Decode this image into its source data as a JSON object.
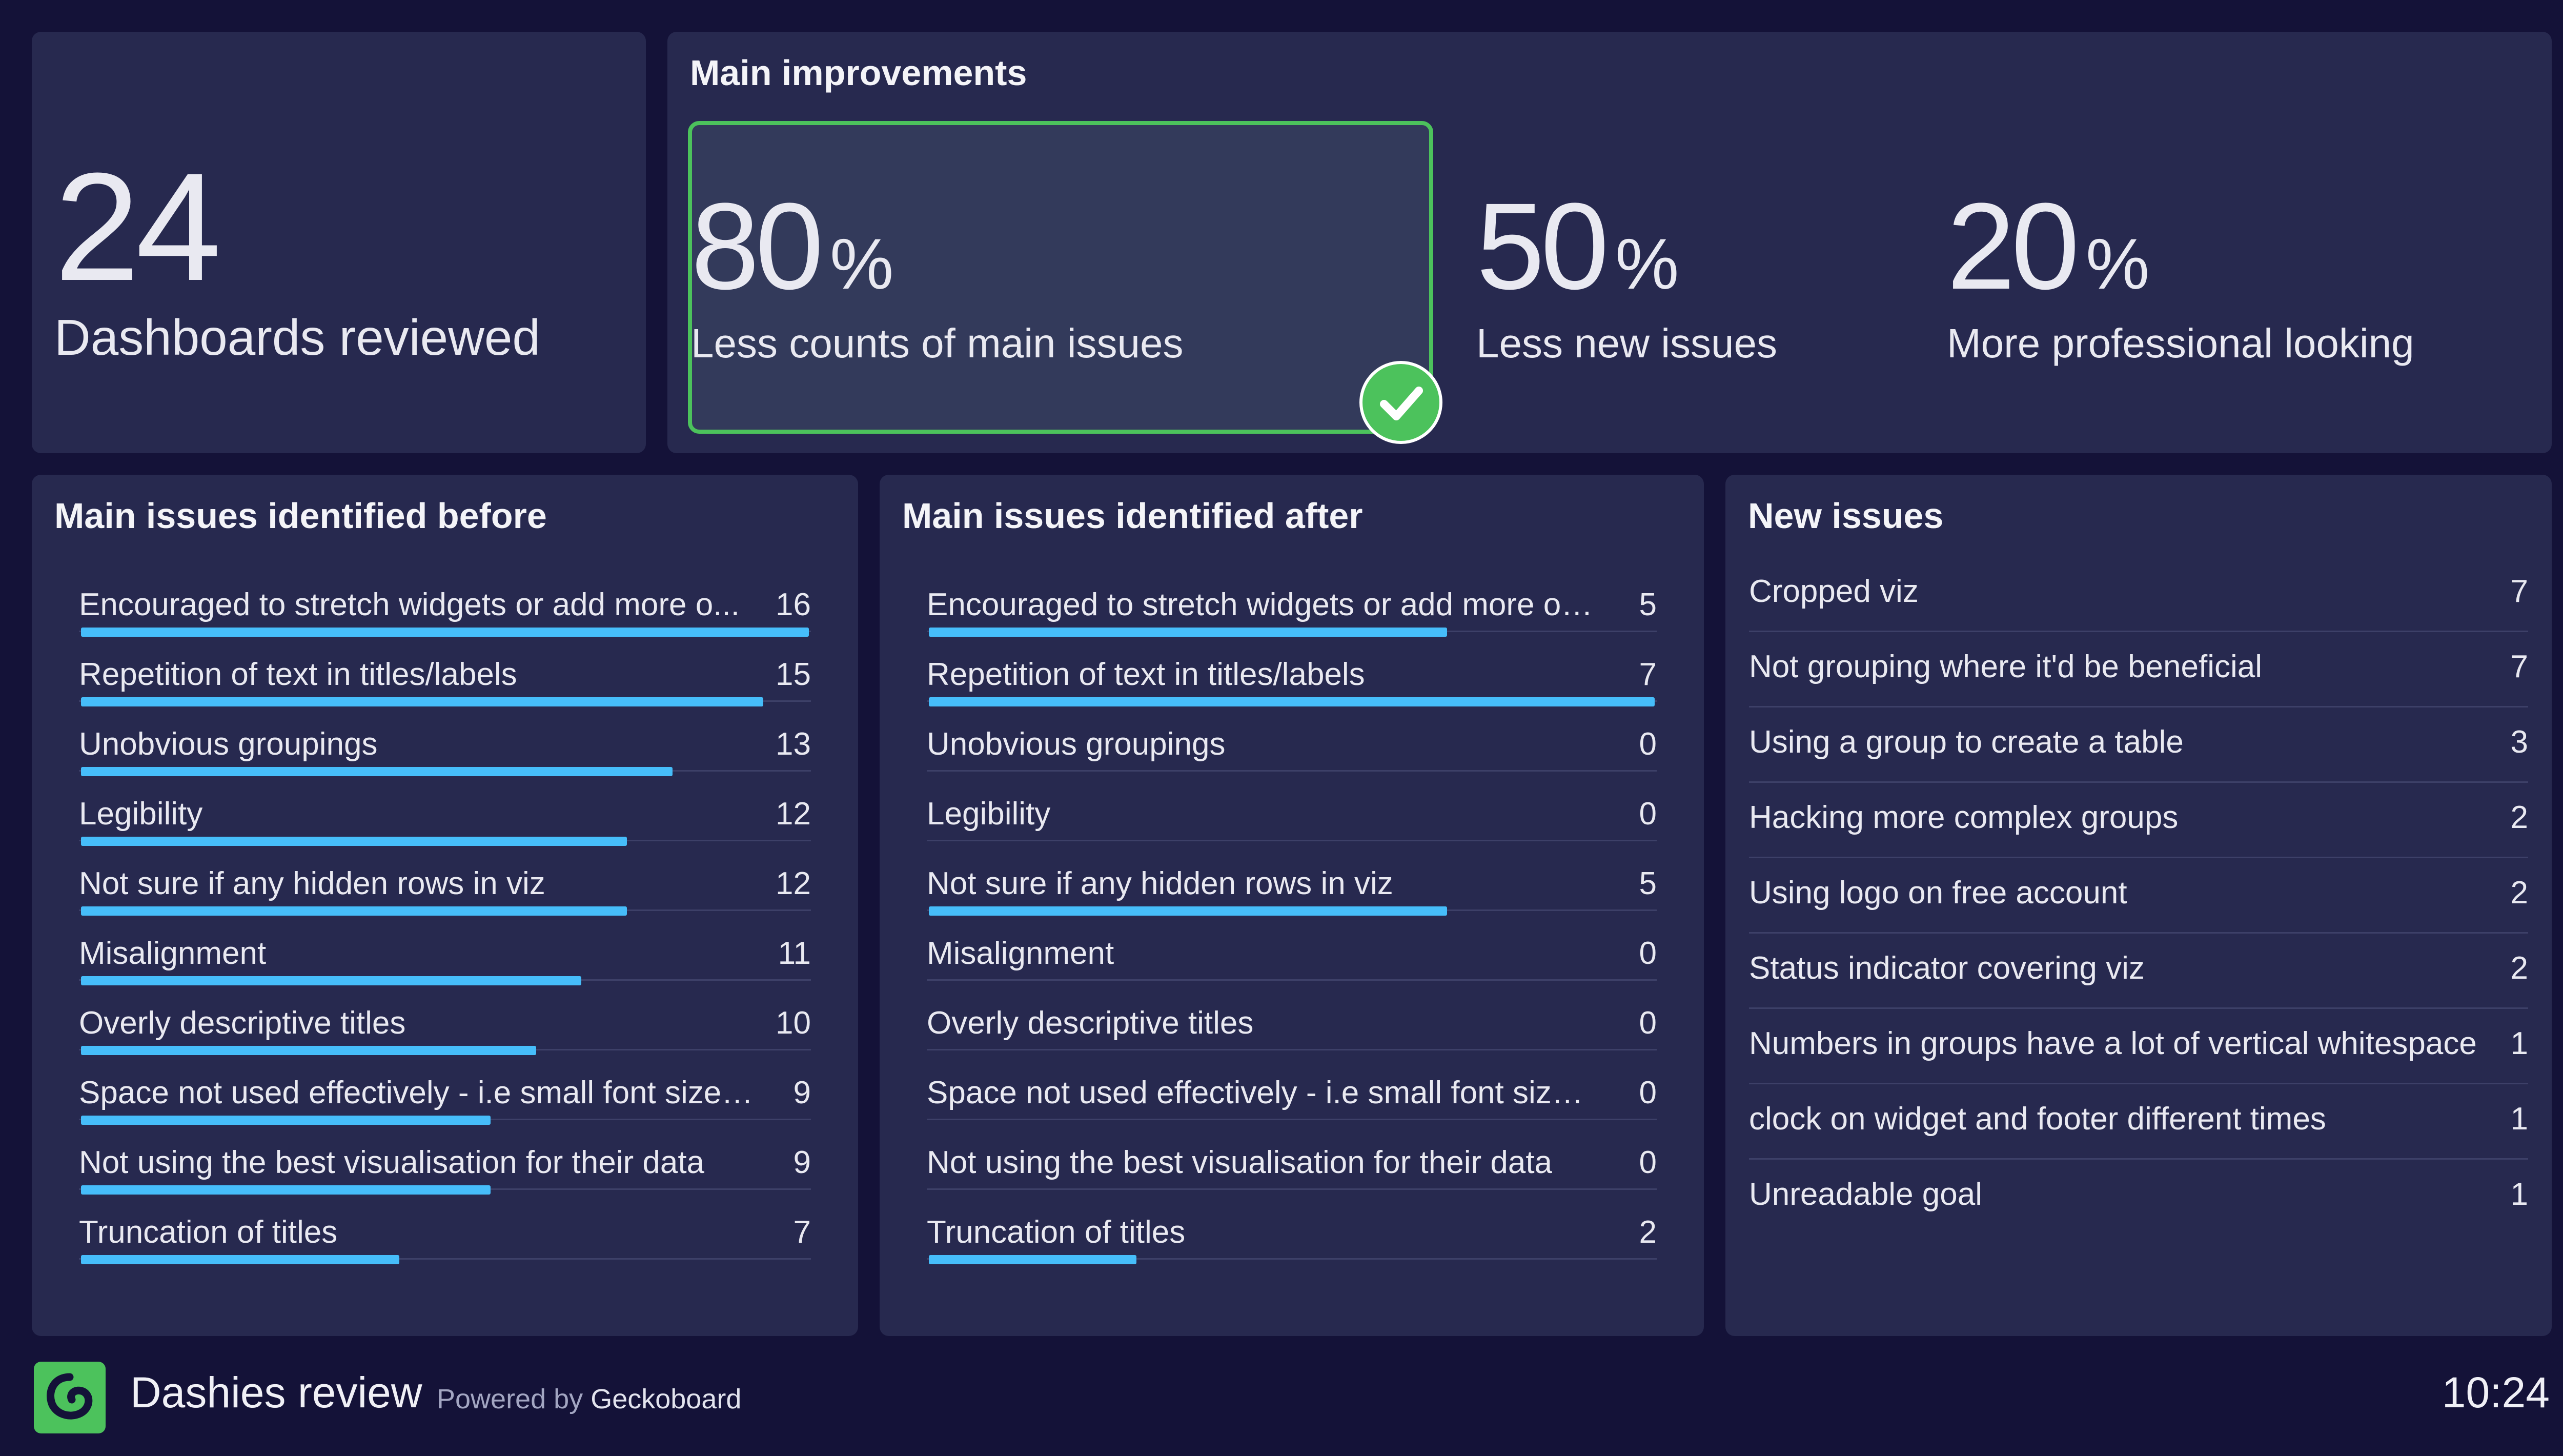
{
  "kpi": {
    "value": "24",
    "label": "Dashboards reviewed"
  },
  "improvements": {
    "title": "Main improvements",
    "items": [
      {
        "value": "80",
        "unit": "%",
        "label": "Less counts of main issues",
        "highlighted": true
      },
      {
        "value": "50",
        "unit": "%",
        "label": "Less new issues"
      },
      {
        "value": "20",
        "unit": "%",
        "label": "More professional looking"
      }
    ]
  },
  "before": {
    "title": "Main issues identified before",
    "max": 16,
    "rows": [
      {
        "label": "Encouraged to stretch widgets or add more o...",
        "count": 16
      },
      {
        "label": "Repetition of text in titles/labels",
        "count": 15
      },
      {
        "label": "Unobvious groupings",
        "count": 13
      },
      {
        "label": "Legibility",
        "count": 12
      },
      {
        "label": "Not sure if any hidden rows in viz",
        "count": 12
      },
      {
        "label": "Misalignment",
        "count": 11
      },
      {
        "label": "Overly descriptive titles",
        "count": 10
      },
      {
        "label": "Space not used effectively - i.e small font size i...",
        "count": 9
      },
      {
        "label": "Not using the best visualisation for their data",
        "count": 9
      },
      {
        "label": "Truncation of titles",
        "count": 7
      }
    ]
  },
  "after": {
    "title": "Main issues identified after",
    "max": 7,
    "rows": [
      {
        "label": "Encouraged to stretch widgets or add more or ...",
        "count": 5
      },
      {
        "label": "Repetition of text in titles/labels",
        "count": 7
      },
      {
        "label": "Unobvious groupings",
        "count": 0
      },
      {
        "label": "Legibility",
        "count": 0
      },
      {
        "label": "Not sure if any hidden rows in viz",
        "count": 5
      },
      {
        "label": "Misalignment",
        "count": 0
      },
      {
        "label": "Overly descriptive titles",
        "count": 0
      },
      {
        "label": "Space not used effectively - i.e small font size i...",
        "count": 0
      },
      {
        "label": "Not using the best visualisation for their data",
        "count": 0
      },
      {
        "label": "Truncation of titles",
        "count": 2
      }
    ]
  },
  "newIssues": {
    "title": "New issues",
    "rows": [
      {
        "label": "Cropped viz",
        "count": 7
      },
      {
        "label": "Not grouping where it'd be beneficial",
        "count": 7
      },
      {
        "label": "Using a group to create a table",
        "count": 3
      },
      {
        "label": "Hacking more complex groups",
        "count": 2
      },
      {
        "label": "Using logo on free account",
        "count": 2
      },
      {
        "label": "Status indicator covering viz",
        "count": 2
      },
      {
        "label": "Numbers in groups have a lot of vertical whitespace",
        "count": 1
      },
      {
        "label": "clock on widget and footer different times",
        "count": 1
      },
      {
        "label": "Unreadable goal",
        "count": 1
      }
    ]
  },
  "footer": {
    "title": "Dashies review",
    "powered_prefix": "Powered by",
    "powered_brand": "Geckoboard",
    "clock": "10:24",
    "logo_icon": "geckoboard-logo-icon"
  },
  "colors": {
    "background": "#141238",
    "panel": "#27294f",
    "accent": "#4cc25c",
    "bar": "#46bdfa"
  }
}
